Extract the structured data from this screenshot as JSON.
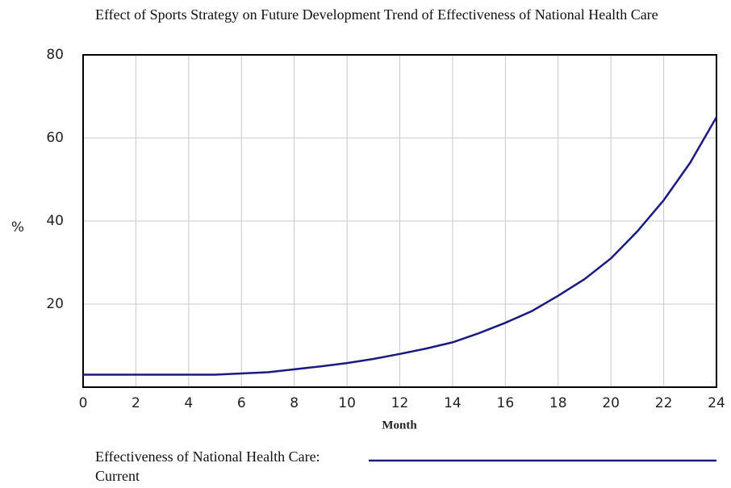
{
  "chart_data": {
    "type": "line",
    "title": "Effect of Sports Strategy on Future Development Trend of Effectiveness of National Health Care",
    "x_label": "Month",
    "y_label": "%",
    "x": [
      0,
      1,
      2,
      3,
      4,
      5,
      6,
      7,
      8,
      9,
      10,
      11,
      12,
      13,
      14,
      15,
      16,
      17,
      18,
      19,
      20,
      21,
      22,
      23,
      24
    ],
    "series": [
      {
        "name": "Effectiveness of National Health Care: Current",
        "color": "#1a1a80",
        "values": [
          3,
          3,
          3,
          3,
          3,
          3,
          3.3,
          3.6,
          4.3,
          5,
          5.8,
          6.8,
          8,
          9.3,
          10.8,
          13,
          15.5,
          18.3,
          22,
          26,
          31,
          37.5,
          45,
          54,
          65
        ]
      }
    ],
    "xlim": [
      0,
      24
    ],
    "xticks": [
      0,
      2,
      4,
      6,
      8,
      10,
      12,
      14,
      16,
      18,
      20,
      22,
      24
    ],
    "ylim": [
      0,
      80
    ],
    "yticks": [
      20,
      40,
      60,
      80
    ],
    "grid": true
  }
}
